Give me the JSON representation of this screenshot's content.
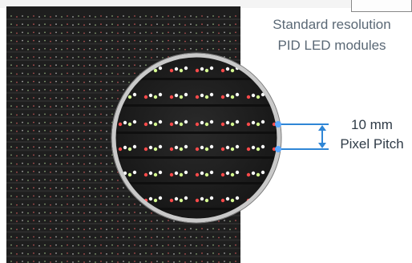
{
  "caption": {
    "title_line1": "Standard resolution",
    "title_line2": "PID LED modules"
  },
  "pitch_callout": {
    "value": "10 mm",
    "label": "Pixel Pitch"
  },
  "colors": {
    "panel": "#1e1e1e",
    "led_red": "#ff4a4a",
    "led_white": "#ffffff",
    "led_green": "#d6ff90",
    "dimension_line": "#2f86d6",
    "lens_ring": "#c9c9c9",
    "title_text": "#5a6875"
  }
}
